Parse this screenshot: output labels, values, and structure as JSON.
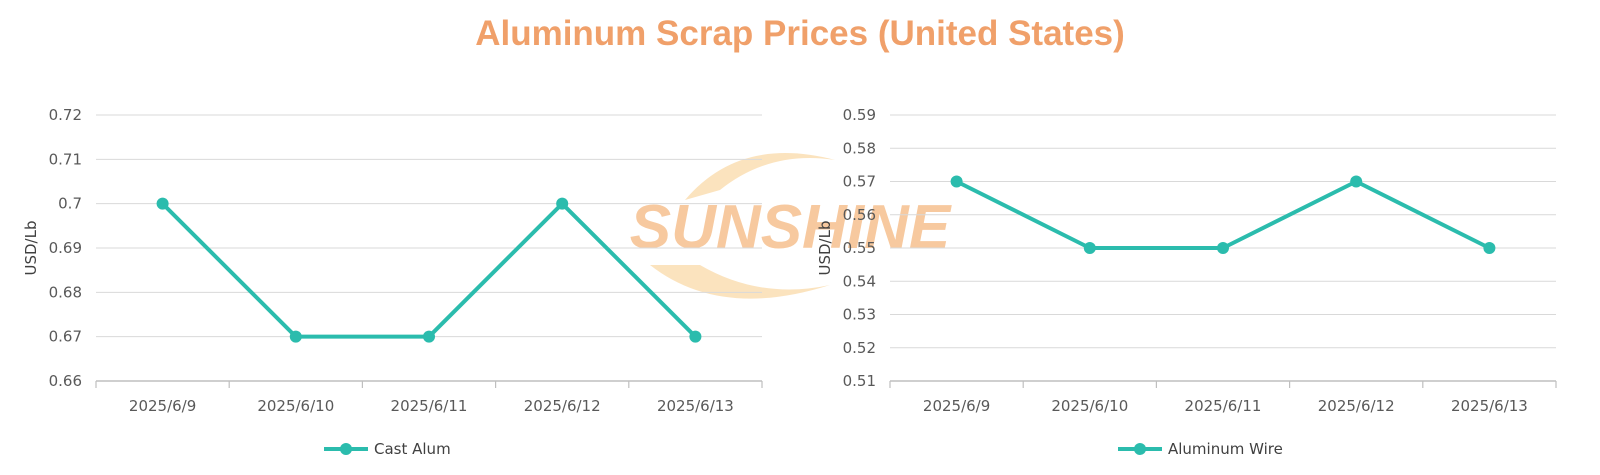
{
  "title": "Aluminum Scrap Prices (United States)",
  "watermark": "SUNSHINE",
  "colors": {
    "title": "#f0a06a",
    "series": "#2bbcad",
    "grid": "#d9d9d9",
    "axis": "#bfbfbf",
    "watermark": "#f6c08f"
  },
  "chart_data": [
    {
      "type": "line",
      "categories": [
        "2025/6/9",
        "2025/6/10",
        "2025/6/11",
        "2025/6/12",
        "2025/6/13"
      ],
      "series": [
        {
          "name": "Cast Alum",
          "values": [
            0.7,
            0.67,
            0.67,
            0.7,
            0.67
          ]
        }
      ],
      "xlabel": "",
      "ylabel": "USD/Lb",
      "ylim": [
        0.66,
        0.72
      ],
      "yticks": [
        "0.66",
        "0.67",
        "0.68",
        "0.69",
        "0.7",
        "0.71",
        "0.72"
      ],
      "grid": true,
      "legend": "bottom"
    },
    {
      "type": "line",
      "categories": [
        "2025/6/9",
        "2025/6/10",
        "2025/6/11",
        "2025/6/12",
        "2025/6/13"
      ],
      "series": [
        {
          "name": "Aluminum Wire",
          "values": [
            0.57,
            0.55,
            0.55,
            0.57,
            0.55
          ]
        }
      ],
      "xlabel": "",
      "ylabel": "USD/Lb",
      "ylim": [
        0.51,
        0.59
      ],
      "yticks": [
        "0.51",
        "0.52",
        "0.53",
        "0.54",
        "0.55",
        "0.56",
        "0.57",
        "0.58",
        "0.59"
      ],
      "grid": true,
      "legend": "bottom"
    }
  ]
}
